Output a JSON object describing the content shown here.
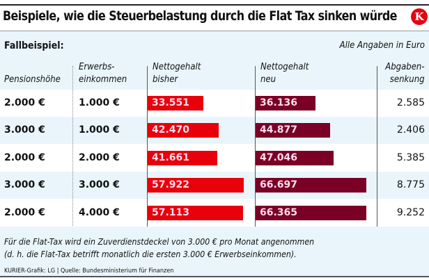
{
  "title": "Beispiele, wie die Steuerbelastung durch die Flat Tax sinken würde",
  "logo": "K",
  "subtitle": "Fallbeispiel:",
  "unit_note": "Alle Angaben in Euro",
  "chart_data": {
    "type": "table",
    "columns": [
      "Pensionshöhe",
      "Erwerbs-\neinkommen",
      "Nettogehalt\nbisher",
      "Nettogehalt\nneu",
      "Abgaben-\nsenkung"
    ],
    "rows": [
      {
        "pension": "2.000 €",
        "erwerb": "1.000 €",
        "bisher": 33551,
        "bisher_label": "33.551",
        "neu": 36136,
        "neu_label": "36.136",
        "senkung": "2.585"
      },
      {
        "pension": "3.000 €",
        "erwerb": "1.000 €",
        "bisher": 42470,
        "bisher_label": "42.470",
        "neu": 44877,
        "neu_label": "44.877",
        "senkung": "2.406"
      },
      {
        "pension": "2.000 €",
        "erwerb": "2.000 €",
        "bisher": 41661,
        "bisher_label": "41.661",
        "neu": 47046,
        "neu_label": "47.046",
        "senkung": "5.385"
      },
      {
        "pension": "3.000 €",
        "erwerb": "3.000 €",
        "bisher": 57922,
        "bisher_label": "57.922",
        "neu": 66697,
        "neu_label": "66.697",
        "senkung": "8.775"
      },
      {
        "pension": "2.000 €",
        "erwerb": "4.000 €",
        "bisher": 57113,
        "bisher_label": "57.113",
        "neu": 66365,
        "neu_label": "66.365",
        "senkung": "9.252"
      }
    ],
    "colors": {
      "bisher": "#e8000b",
      "neu": "#7a0026",
      "logo": "#e30613"
    }
  },
  "footnote": [
    "Für die Flat-Tax wird ein Zuverdienstdeckel von 3.000 € pro Monat angenommen",
    "(d. h. die Flat-Tax betrifft monatlich die ersten 3.000 € Erwerbseinkommen)."
  ],
  "credit": "KURIER-Grafik: LG | Quelle: Bundesministerium für Finanzen"
}
